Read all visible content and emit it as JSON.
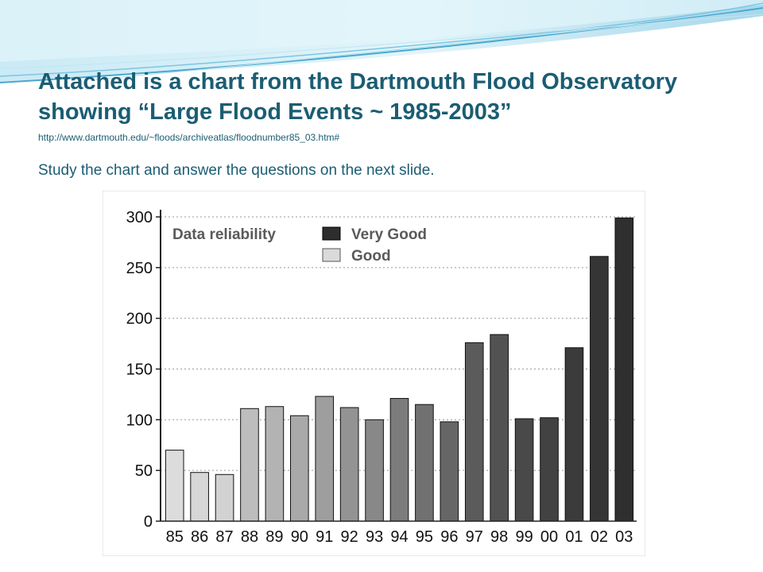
{
  "slide": {
    "title_line1": "Attached is a chart from the Dartmouth Flood Observatory",
    "title_line2": "showing “Large Flood Events ~ 1985-2003”",
    "url": "http://www.dartmouth.edu/~floods/archiveatlas/floodnumber85_03.htm#",
    "instruction": "Study the chart and answer the questions on the next slide."
  },
  "colors": {
    "title_text": "#1b5d73",
    "wave_light": "#b6e4f2",
    "wave_mid": "#6fbfdd",
    "legend_very_good": "#2e2e2e",
    "legend_good": "#dadada"
  },
  "chart_data": {
    "type": "bar",
    "title": "",
    "xlabel": "",
    "ylabel": "",
    "ylim": [
      0,
      300
    ],
    "yticks": [
      0,
      50,
      100,
      150,
      200,
      250,
      300
    ],
    "grid": "horizontal dotted",
    "legend_placement": "top-left",
    "legend": {
      "title": "Data reliability",
      "entries": [
        {
          "label": "Very Good",
          "color": "#2e2e2e"
        },
        {
          "label": "Good",
          "color": "#dadada"
        }
      ]
    },
    "categories": [
      "85",
      "86",
      "87",
      "88",
      "89",
      "90",
      "91",
      "92",
      "93",
      "94",
      "95",
      "96",
      "97",
      "98",
      "99",
      "00",
      "01",
      "02",
      "03"
    ],
    "values": [
      70,
      48,
      46,
      111,
      113,
      104,
      123,
      112,
      100,
      121,
      115,
      98,
      176,
      184,
      101,
      102,
      171,
      261,
      299
    ],
    "bar_colors": [
      "#dcdcdc",
      "#d7d7d7",
      "#d2d2d2",
      "#bdbdbd",
      "#b3b3b3",
      "#a9a9a9",
      "#9e9e9e",
      "#939393",
      "#888888",
      "#7c7c7c",
      "#717171",
      "#666666",
      "#5b5b5b",
      "#525252",
      "#494949",
      "#424242",
      "#3b3b3b",
      "#353535",
      "#2f2f2f"
    ]
  }
}
